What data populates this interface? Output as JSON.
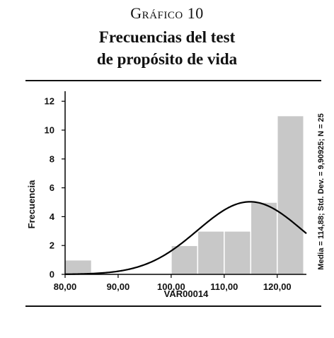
{
  "header": {
    "label": "Gráfico 10",
    "title_line1": "Frecuencias del test",
    "title_line2": "de propósito de vida"
  },
  "chart_data": {
    "type": "bar",
    "title": "Frecuencias del test de propósito de vida",
    "xlabel": "VAR00014",
    "ylabel": "Frecuencia",
    "xlim": [
      80,
      125.5
    ],
    "ylim": [
      0,
      12.5
    ],
    "x_ticks": [
      80,
      90,
      100,
      110,
      120
    ],
    "x_tick_labels": [
      "80,00",
      "90,00",
      "100,00",
      "110,00",
      "120,00"
    ],
    "y_ticks": [
      0,
      2,
      4,
      6,
      8,
      10,
      12
    ],
    "y_tick_labels": [
      "0",
      "2",
      "4",
      "6",
      "8",
      "10",
      "12"
    ],
    "bins": [
      {
        "from": 80,
        "to": 85,
        "count": 1
      },
      {
        "from": 100,
        "to": 105,
        "count": 2
      },
      {
        "from": 105,
        "to": 110,
        "count": 3
      },
      {
        "from": 110,
        "to": 115,
        "count": 3
      },
      {
        "from": 115,
        "to": 120,
        "count": 5
      },
      {
        "from": 120,
        "to": 125,
        "count": 11
      }
    ],
    "normal_curve": {
      "mean": 114.88,
      "std_dev": 9.90925,
      "n": 25,
      "bin_width": 5
    },
    "annotation": "Media = 114,88; Std. Dev. = 9,90925; N = 25",
    "bar_color": "#c8c8c8",
    "grid": false
  }
}
